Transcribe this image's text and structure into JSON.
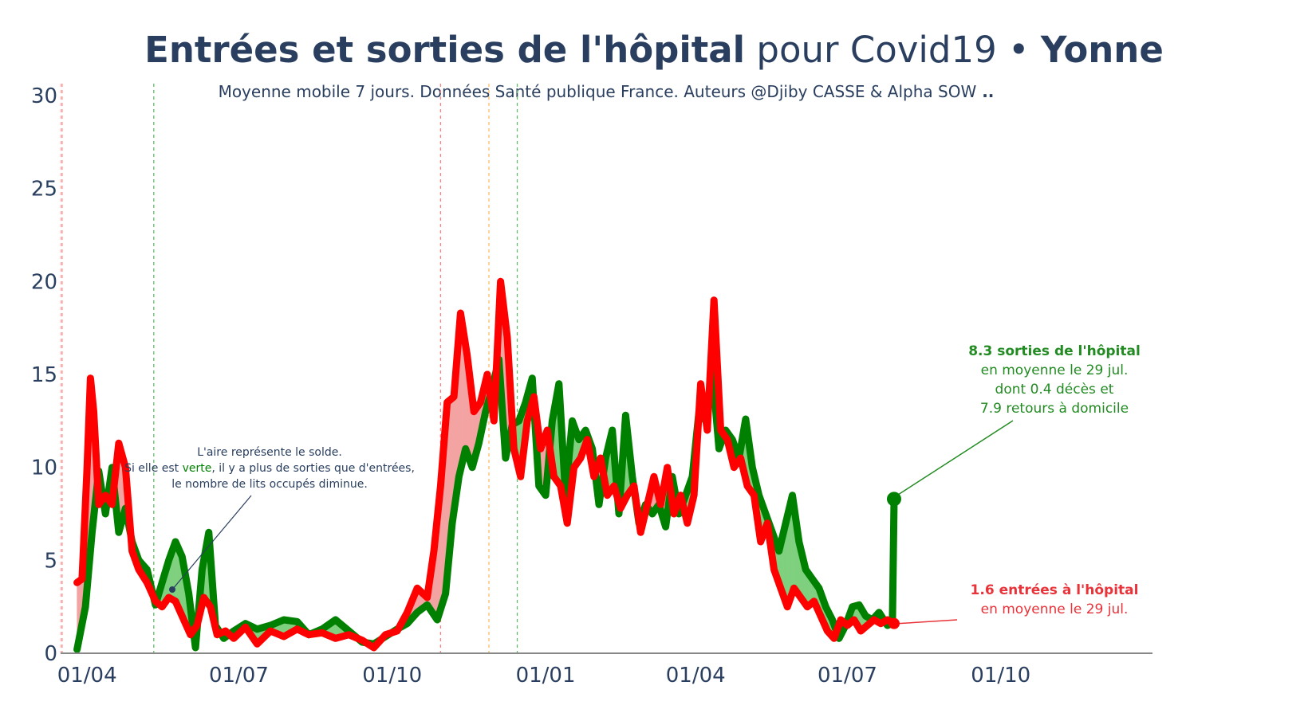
{
  "title": {
    "part_bold": "Entrées et sorties de l'hôpital",
    "part_normal": " pour Covid19 • ",
    "part_place": "Yonne"
  },
  "subtitle": "Moyenne mobile 7 jours. Données Santé publique France. Auteurs @Djiby CASSE & Alpha SOW",
  "subtitle_tail": " ..",
  "colors": {
    "sorties": "#008000",
    "entrees": "#ff0000",
    "positive_fill": "#7fd07f",
    "negative_fill": "#f4a3a3",
    "text": "#2a3f5f"
  },
  "note": {
    "line1": "L'aire représente le solde.",
    "line2_a": "Si elle est ",
    "line2_green": "verte",
    "line2_b": ", il y a plus de sorties que d'entrées,",
    "line3": "le nombre de lits occupés diminue."
  },
  "ann_sorties": {
    "line1": "8.3 sorties de l'hôpital",
    "line2": "en moyenne le 29 jul.",
    "line3": "dont 0.4 décès et",
    "line4": "7.9 retours à domicile"
  },
  "ann_entrees": {
    "line1": "1.6 entrées à l'hôpital",
    "line2": "en moyenne le 29 jul."
  },
  "chart_data": {
    "type": "line",
    "x_domain": [
      "2020-03-19",
      "2021-12-31"
    ],
    "ylim": [
      0,
      30
    ],
    "y_ticks": [
      0,
      5,
      10,
      15,
      20,
      25,
      30
    ],
    "x_ticks": [
      {
        "date": "2020-04-01",
        "label": "01/04"
      },
      {
        "date": "2020-07-01",
        "label": "01/07"
      },
      {
        "date": "2020-10-01",
        "label": "01/10"
      },
      {
        "date": "2021-01-01",
        "label": "01/01"
      },
      {
        "date": "2021-04-01",
        "label": "01/04"
      },
      {
        "date": "2021-07-01",
        "label": "01/07"
      },
      {
        "date": "2021-10-01",
        "label": "01/10"
      }
    ],
    "vlines": [
      {
        "date": "2020-03-17",
        "color": "#ff8080"
      },
      {
        "date": "2020-05-11",
        "color": "#66bb66"
      },
      {
        "date": "2020-10-30",
        "color": "#ff8080"
      },
      {
        "date": "2020-11-28",
        "color": "#ffbb66"
      },
      {
        "date": "2020-12-15",
        "color": "#66bb66"
      }
    ],
    "series": [
      {
        "key": "sorties",
        "points": [
          [
            "2020-03-26",
            0.2
          ],
          [
            "2020-03-31",
            2.5
          ],
          [
            "2020-04-04",
            6.5
          ],
          [
            "2020-04-08",
            9.8
          ],
          [
            "2020-04-12",
            7.5
          ],
          [
            "2020-04-16",
            10.0
          ],
          [
            "2020-04-20",
            6.5
          ],
          [
            "2020-04-24",
            7.8
          ],
          [
            "2020-04-28",
            6.0
          ],
          [
            "2020-05-02",
            5.0
          ],
          [
            "2020-05-07",
            4.5
          ],
          [
            "2020-05-12",
            2.6
          ],
          [
            "2020-05-16",
            3.8
          ],
          [
            "2020-05-20",
            5.0
          ],
          [
            "2020-05-24",
            6.0
          ],
          [
            "2020-05-28",
            5.2
          ],
          [
            "2020-06-01",
            3.2
          ],
          [
            "2020-06-05",
            0.3
          ],
          [
            "2020-06-09",
            4.5
          ],
          [
            "2020-06-13",
            6.5
          ],
          [
            "2020-06-17",
            1.5
          ],
          [
            "2020-06-22",
            0.8
          ],
          [
            "2020-06-28",
            1.2
          ],
          [
            "2020-07-05",
            1.6
          ],
          [
            "2020-07-12",
            1.3
          ],
          [
            "2020-07-20",
            1.5
          ],
          [
            "2020-07-28",
            1.8
          ],
          [
            "2020-08-05",
            1.7
          ],
          [
            "2020-08-12",
            1.0
          ],
          [
            "2020-08-20",
            1.3
          ],
          [
            "2020-08-28",
            1.8
          ],
          [
            "2020-09-05",
            1.2
          ],
          [
            "2020-09-13",
            0.6
          ],
          [
            "2020-09-20",
            0.5
          ],
          [
            "2020-09-27",
            0.9
          ],
          [
            "2020-10-04",
            1.3
          ],
          [
            "2020-10-10",
            1.6
          ],
          [
            "2020-10-16",
            2.2
          ],
          [
            "2020-10-22",
            2.6
          ],
          [
            "2020-10-28",
            1.8
          ],
          [
            "2020-11-02",
            3.2
          ],
          [
            "2020-11-06",
            7.0
          ],
          [
            "2020-11-10",
            9.5
          ],
          [
            "2020-11-14",
            11.0
          ],
          [
            "2020-11-18",
            10.0
          ],
          [
            "2020-11-22",
            11.3
          ],
          [
            "2020-11-26",
            13.0
          ],
          [
            "2020-11-30",
            14.3
          ],
          [
            "2020-12-04",
            15.8
          ],
          [
            "2020-12-08",
            10.5
          ],
          [
            "2020-12-12",
            12.3
          ],
          [
            "2020-12-16",
            12.5
          ],
          [
            "2020-12-20",
            13.5
          ],
          [
            "2020-12-24",
            14.8
          ],
          [
            "2020-12-28",
            9.0
          ],
          [
            "2021-01-01",
            8.5
          ],
          [
            "2021-01-05",
            12.5
          ],
          [
            "2021-01-09",
            14.5
          ],
          [
            "2021-01-13",
            8.5
          ],
          [
            "2021-01-17",
            12.5
          ],
          [
            "2021-01-21",
            11.5
          ],
          [
            "2021-01-25",
            12.0
          ],
          [
            "2021-01-29",
            11.0
          ],
          [
            "2021-02-02",
            8.0
          ],
          [
            "2021-02-06",
            10.5
          ],
          [
            "2021-02-10",
            12.0
          ],
          [
            "2021-02-14",
            7.5
          ],
          [
            "2021-02-18",
            12.8
          ],
          [
            "2021-02-22",
            9.5
          ],
          [
            "2021-02-26",
            7.0
          ],
          [
            "2021-03-02",
            8.0
          ],
          [
            "2021-03-06",
            7.5
          ],
          [
            "2021-03-10",
            8.0
          ],
          [
            "2021-03-14",
            6.8
          ],
          [
            "2021-03-18",
            9.5
          ],
          [
            "2021-03-22",
            7.5
          ],
          [
            "2021-03-26",
            8.5
          ],
          [
            "2021-03-30",
            9.5
          ],
          [
            "2021-04-03",
            13.0
          ],
          [
            "2021-04-07",
            12.5
          ],
          [
            "2021-04-11",
            15.2
          ],
          [
            "2021-04-15",
            11.0
          ],
          [
            "2021-04-19",
            12.0
          ],
          [
            "2021-04-23",
            11.5
          ],
          [
            "2021-04-27",
            10.5
          ],
          [
            "2021-05-01",
            12.6
          ],
          [
            "2021-05-05",
            10.0
          ],
          [
            "2021-05-09",
            8.5
          ],
          [
            "2021-05-13",
            7.5
          ],
          [
            "2021-05-17",
            6.5
          ],
          [
            "2021-05-21",
            5.5
          ],
          [
            "2021-05-25",
            7.0
          ],
          [
            "2021-05-29",
            8.5
          ],
          [
            "2021-06-02",
            6.0
          ],
          [
            "2021-06-06",
            4.5
          ],
          [
            "2021-06-10",
            4.0
          ],
          [
            "2021-06-14",
            3.5
          ],
          [
            "2021-06-18",
            2.5
          ],
          [
            "2021-06-22",
            1.8
          ],
          [
            "2021-06-26",
            0.8
          ],
          [
            "2021-06-30",
            1.5
          ],
          [
            "2021-07-04",
            2.5
          ],
          [
            "2021-07-08",
            2.6
          ],
          [
            "2021-07-12",
            2.0
          ],
          [
            "2021-07-16",
            1.8
          ],
          [
            "2021-07-20",
            2.2
          ],
          [
            "2021-07-25",
            1.5
          ],
          [
            "2021-07-28",
            1.6
          ],
          [
            "2021-07-29",
            8.3
          ]
        ]
      },
      {
        "key": "entrees",
        "points": [
          [
            "2020-03-26",
            3.8
          ],
          [
            "2020-03-29",
            4.0
          ],
          [
            "2020-04-01",
            10.0
          ],
          [
            "2020-04-03",
            14.8
          ],
          [
            "2020-04-05",
            13.0
          ],
          [
            "2020-04-08",
            8.0
          ],
          [
            "2020-04-12",
            8.5
          ],
          [
            "2020-04-16",
            8.0
          ],
          [
            "2020-04-20",
            11.3
          ],
          [
            "2020-04-24",
            10.0
          ],
          [
            "2020-04-28",
            5.5
          ],
          [
            "2020-05-02",
            4.5
          ],
          [
            "2020-05-07",
            3.8
          ],
          [
            "2020-05-12",
            2.8
          ],
          [
            "2020-05-16",
            2.5
          ],
          [
            "2020-05-20",
            3.0
          ],
          [
            "2020-05-24",
            2.8
          ],
          [
            "2020-05-28",
            2.0
          ],
          [
            "2020-06-02",
            1.0
          ],
          [
            "2020-06-06",
            1.5
          ],
          [
            "2020-06-10",
            3.0
          ],
          [
            "2020-06-14",
            2.5
          ],
          [
            "2020-06-18",
            1.0
          ],
          [
            "2020-06-23",
            1.2
          ],
          [
            "2020-06-28",
            0.8
          ],
          [
            "2020-07-05",
            1.4
          ],
          [
            "2020-07-12",
            0.5
          ],
          [
            "2020-07-20",
            1.2
          ],
          [
            "2020-07-28",
            0.9
          ],
          [
            "2020-08-05",
            1.3
          ],
          [
            "2020-08-12",
            1.0
          ],
          [
            "2020-08-20",
            1.1
          ],
          [
            "2020-08-28",
            0.8
          ],
          [
            "2020-09-05",
            1.0
          ],
          [
            "2020-09-13",
            0.7
          ],
          [
            "2020-09-20",
            0.3
          ],
          [
            "2020-09-27",
            1.0
          ],
          [
            "2020-10-04",
            1.2
          ],
          [
            "2020-10-10",
            2.2
          ],
          [
            "2020-10-16",
            3.5
          ],
          [
            "2020-10-22",
            3.0
          ],
          [
            "2020-10-26",
            5.5
          ],
          [
            "2020-10-30",
            9.0
          ],
          [
            "2020-11-03",
            13.5
          ],
          [
            "2020-11-07",
            13.8
          ],
          [
            "2020-11-11",
            18.3
          ],
          [
            "2020-11-15",
            16.0
          ],
          [
            "2020-11-19",
            13.0
          ],
          [
            "2020-11-23",
            13.5
          ],
          [
            "2020-11-27",
            15.0
          ],
          [
            "2020-12-01",
            12.5
          ],
          [
            "2020-12-05",
            20.0
          ],
          [
            "2020-12-09",
            17.0
          ],
          [
            "2020-12-13",
            11.0
          ],
          [
            "2020-12-17",
            9.5
          ],
          [
            "2020-12-21",
            12.5
          ],
          [
            "2020-12-25",
            13.8
          ],
          [
            "2020-12-29",
            11.0
          ],
          [
            "2021-01-02",
            12.0
          ],
          [
            "2021-01-06",
            9.5
          ],
          [
            "2021-01-10",
            9.0
          ],
          [
            "2021-01-14",
            7.0
          ],
          [
            "2021-01-18",
            10.0
          ],
          [
            "2021-01-22",
            10.5
          ],
          [
            "2021-01-26",
            11.5
          ],
          [
            "2021-01-30",
            9.5
          ],
          [
            "2021-02-03",
            10.5
          ],
          [
            "2021-02-07",
            8.5
          ],
          [
            "2021-02-11",
            9.0
          ],
          [
            "2021-02-15",
            7.8
          ],
          [
            "2021-02-19",
            8.5
          ],
          [
            "2021-02-23",
            9.0
          ],
          [
            "2021-02-27",
            6.5
          ],
          [
            "2021-03-03",
            8.0
          ],
          [
            "2021-03-07",
            9.5
          ],
          [
            "2021-03-11",
            8.0
          ],
          [
            "2021-03-15",
            10.0
          ],
          [
            "2021-03-19",
            7.5
          ],
          [
            "2021-03-23",
            8.5
          ],
          [
            "2021-03-27",
            7.0
          ],
          [
            "2021-03-31",
            8.5
          ],
          [
            "2021-04-04",
            14.5
          ],
          [
            "2021-04-08",
            12.0
          ],
          [
            "2021-04-12",
            19.0
          ],
          [
            "2021-04-16",
            12.0
          ],
          [
            "2021-04-20",
            11.5
          ],
          [
            "2021-04-24",
            10.0
          ],
          [
            "2021-04-28",
            10.5
          ],
          [
            "2021-05-02",
            9.0
          ],
          [
            "2021-05-06",
            8.5
          ],
          [
            "2021-05-10",
            6.0
          ],
          [
            "2021-05-14",
            7.0
          ],
          [
            "2021-05-18",
            4.5
          ],
          [
            "2021-05-22",
            3.5
          ],
          [
            "2021-05-26",
            2.5
          ],
          [
            "2021-05-30",
            3.5
          ],
          [
            "2021-06-03",
            3.0
          ],
          [
            "2021-06-07",
            2.5
          ],
          [
            "2021-06-11",
            2.8
          ],
          [
            "2021-06-15",
            2.0
          ],
          [
            "2021-06-19",
            1.2
          ],
          [
            "2021-06-23",
            0.8
          ],
          [
            "2021-06-27",
            1.8
          ],
          [
            "2021-07-01",
            1.5
          ],
          [
            "2021-07-05",
            1.8
          ],
          [
            "2021-07-09",
            1.2
          ],
          [
            "2021-07-13",
            1.5
          ],
          [
            "2021-07-17",
            1.8
          ],
          [
            "2021-07-21",
            1.6
          ],
          [
            "2021-07-25",
            1.8
          ],
          [
            "2021-07-29",
            1.6
          ]
        ]
      }
    ]
  }
}
